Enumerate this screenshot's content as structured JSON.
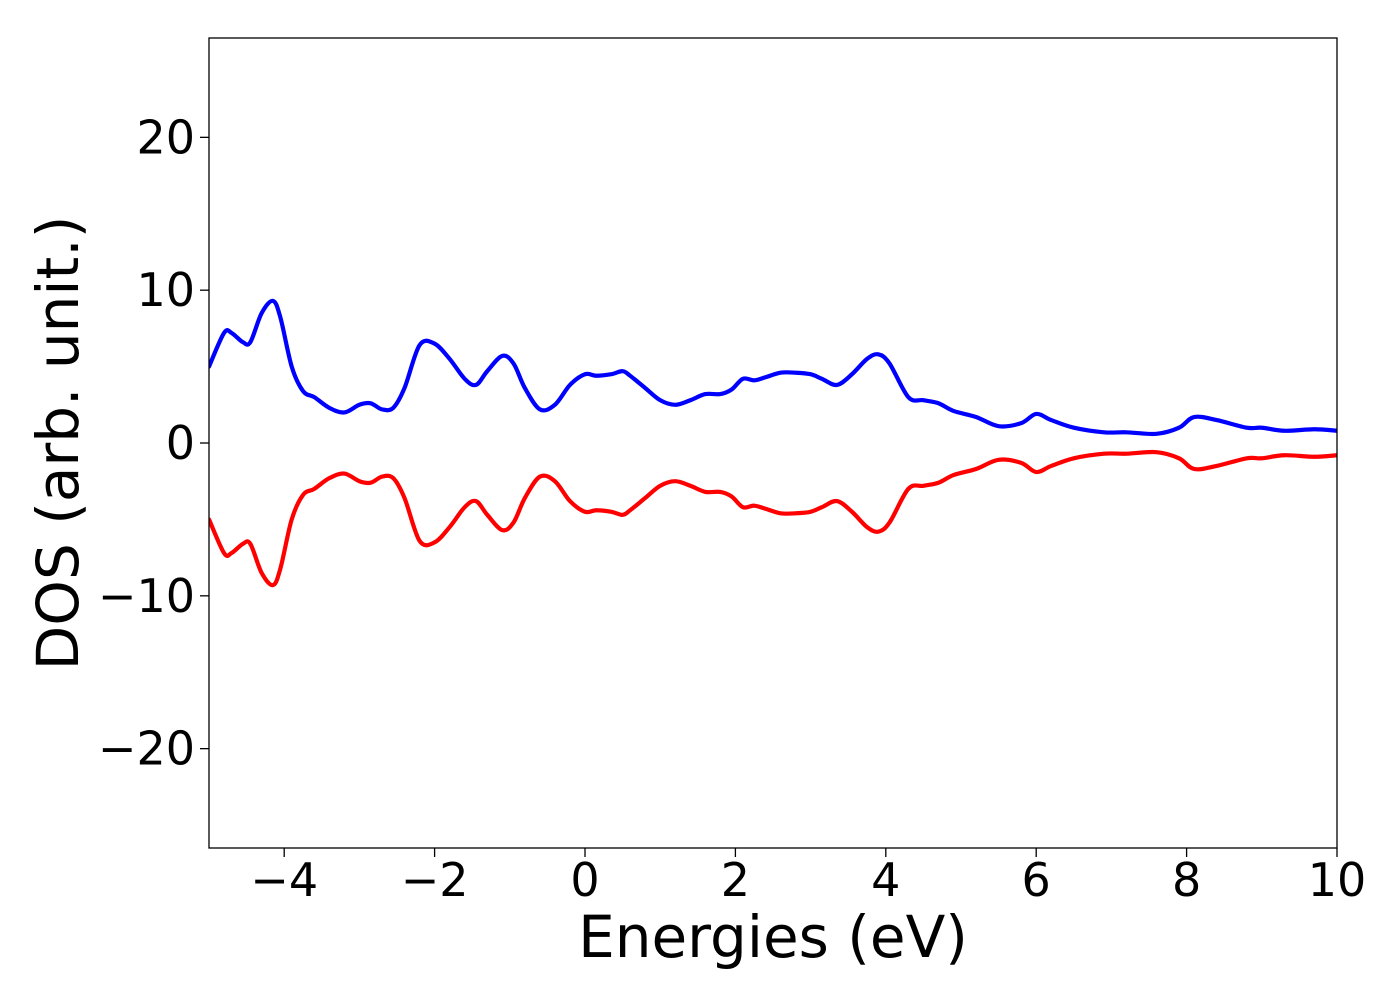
{
  "chart_data": {
    "type": "line",
    "title": "",
    "xlabel": "Energies (eV)",
    "ylabel": "DOS (arb. unit.)",
    "xlim": [
      -5,
      10
    ],
    "ylim": [
      -26.5,
      26.5
    ],
    "grid": false,
    "legend": "none",
    "xticks": [
      -4,
      -2,
      0,
      2,
      4,
      6,
      8,
      10
    ],
    "xtick_labels": [
      "−4",
      "−2",
      "0",
      "2",
      "4",
      "6",
      "8",
      "10"
    ],
    "yticks": [
      -20,
      -10,
      0,
      10,
      20
    ],
    "ytick_labels": [
      "−20",
      "−10",
      "0",
      "10",
      "20"
    ],
    "series": [
      {
        "color": "#0000ff",
        "x": [
          -5.0,
          -4.8,
          -4.7,
          -4.55,
          -4.45,
          -4.3,
          -4.15,
          -4.05,
          -3.9,
          -3.75,
          -3.6,
          -3.4,
          -3.2,
          -3.0,
          -2.85,
          -2.7,
          -2.55,
          -2.4,
          -2.2,
          -2.0,
          -1.8,
          -1.6,
          -1.45,
          -1.3,
          -1.1,
          -0.95,
          -0.8,
          -0.6,
          -0.4,
          -0.2,
          0.0,
          0.15,
          0.35,
          0.5,
          0.6,
          0.8,
          1.0,
          1.2,
          1.4,
          1.6,
          1.8,
          1.95,
          2.1,
          2.25,
          2.4,
          2.6,
          2.8,
          3.0,
          3.15,
          3.35,
          3.55,
          3.75,
          3.9,
          4.05,
          4.3,
          4.5,
          4.7,
          4.9,
          5.2,
          5.5,
          5.8,
          6.0,
          6.2,
          6.5,
          6.9,
          7.2,
          7.6,
          7.9,
          8.1,
          8.4,
          8.8,
          9.0,
          9.3,
          9.7,
          10.0
        ],
        "y": [
          5.0,
          7.2,
          7.2,
          6.6,
          6.6,
          8.5,
          9.3,
          8.2,
          5.0,
          3.4,
          3.0,
          2.3,
          2.0,
          2.5,
          2.6,
          2.2,
          2.3,
          3.6,
          6.4,
          6.5,
          5.5,
          4.2,
          3.8,
          4.7,
          5.7,
          5.2,
          3.6,
          2.2,
          2.5,
          3.8,
          4.5,
          4.4,
          4.5,
          4.7,
          4.4,
          3.6,
          2.8,
          2.5,
          2.8,
          3.2,
          3.2,
          3.5,
          4.2,
          4.1,
          4.3,
          4.6,
          4.6,
          4.5,
          4.2,
          3.8,
          4.5,
          5.5,
          5.8,
          5.2,
          3.0,
          2.8,
          2.6,
          2.1,
          1.7,
          1.1,
          1.3,
          1.9,
          1.5,
          1.0,
          0.7,
          0.7,
          0.6,
          1.0,
          1.7,
          1.5,
          1.0,
          1.0,
          0.8,
          0.9,
          0.8
        ]
      },
      {
        "color": "#ff0000",
        "x": [
          -5.0,
          -4.8,
          -4.7,
          -4.55,
          -4.45,
          -4.3,
          -4.15,
          -4.05,
          -3.9,
          -3.75,
          -3.6,
          -3.4,
          -3.2,
          -3.0,
          -2.85,
          -2.7,
          -2.55,
          -2.4,
          -2.2,
          -2.0,
          -1.8,
          -1.6,
          -1.45,
          -1.3,
          -1.1,
          -0.95,
          -0.8,
          -0.6,
          -0.4,
          -0.2,
          0.0,
          0.15,
          0.35,
          0.5,
          0.6,
          0.8,
          1.0,
          1.2,
          1.4,
          1.6,
          1.8,
          1.95,
          2.1,
          2.25,
          2.4,
          2.6,
          2.8,
          3.0,
          3.15,
          3.35,
          3.55,
          3.75,
          3.9,
          4.05,
          4.3,
          4.5,
          4.7,
          4.9,
          5.2,
          5.5,
          5.8,
          6.0,
          6.2,
          6.5,
          6.9,
          7.2,
          7.6,
          7.9,
          8.1,
          8.4,
          8.8,
          9.0,
          9.3,
          9.7,
          10.0
        ],
        "y": [
          -5.0,
          -7.2,
          -7.2,
          -6.6,
          -6.6,
          -8.5,
          -9.3,
          -8.2,
          -5.0,
          -3.4,
          -3.0,
          -2.3,
          -2.0,
          -2.5,
          -2.6,
          -2.2,
          -2.3,
          -3.6,
          -6.4,
          -6.5,
          -5.5,
          -4.2,
          -3.8,
          -4.7,
          -5.7,
          -5.2,
          -3.6,
          -2.2,
          -2.5,
          -3.8,
          -4.5,
          -4.4,
          -4.5,
          -4.7,
          -4.4,
          -3.6,
          -2.8,
          -2.5,
          -2.8,
          -3.2,
          -3.2,
          -3.5,
          -4.2,
          -4.1,
          -4.3,
          -4.6,
          -4.6,
          -4.5,
          -4.2,
          -3.8,
          -4.5,
          -5.5,
          -5.8,
          -5.2,
          -3.0,
          -2.8,
          -2.6,
          -2.1,
          -1.7,
          -1.1,
          -1.3,
          -1.9,
          -1.5,
          -1.0,
          -0.7,
          -0.7,
          -0.6,
          -1.0,
          -1.7,
          -1.5,
          -1.0,
          -1.0,
          -0.8,
          -0.9,
          -0.8
        ]
      }
    ]
  }
}
